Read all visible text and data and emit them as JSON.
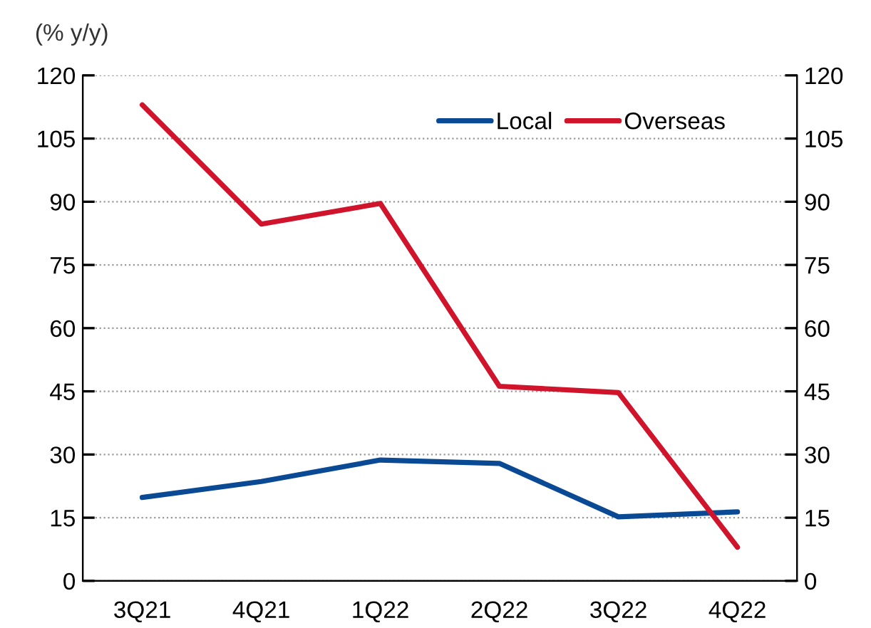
{
  "chart_data": {
    "type": "line",
    "ylabel": "(% y/y)",
    "categories": [
      "3Q21",
      "4Q21",
      "1Q22",
      "2Q22",
      "3Q22",
      "4Q22"
    ],
    "series": [
      {
        "name": "Local",
        "color": "#0a4a94",
        "values": [
          19.8,
          23.6,
          28.7,
          27.9,
          15.2,
          16.4
        ]
      },
      {
        "name": "Overseas",
        "color": "#d0142c",
        "values": [
          113.0,
          84.7,
          89.6,
          46.2,
          44.7,
          8.0
        ]
      }
    ],
    "ylim": [
      0,
      120
    ],
    "yticks": [
      0,
      15,
      30,
      45,
      60,
      75,
      90,
      105,
      120
    ],
    "y2lim": [
      0,
      120
    ],
    "y2ticks": [
      0,
      15,
      30,
      45,
      60,
      75,
      90,
      105,
      120
    ],
    "grid": "y",
    "legend": "top right",
    "marker": "none",
    "line_style": "solid"
  }
}
